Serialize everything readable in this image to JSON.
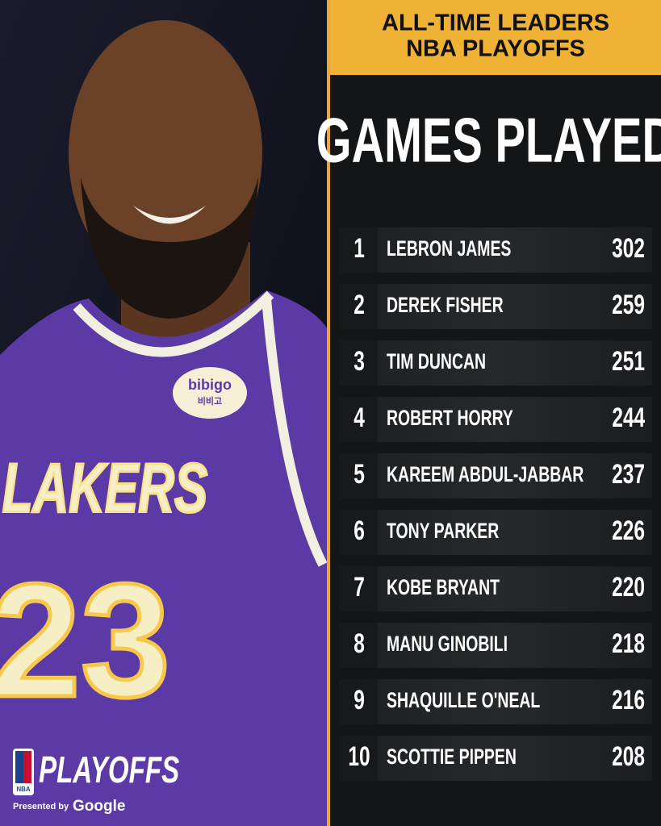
{
  "header": {
    "title_line1": "ALL-TIME LEADERS",
    "title_line2": "NBA PLAYOFFS"
  },
  "stat_title": "GAMES PLAYED",
  "table": {
    "rows": [
      [
        1,
        "LEBRON JAMES",
        302
      ],
      [
        2,
        "DEREK FISHER",
        259
      ],
      [
        3,
        "TIM DUNCAN",
        251
      ],
      [
        4,
        "ROBERT HORRY",
        244
      ],
      [
        5,
        "KAREEM ABDUL-JABBAR",
        237
      ],
      [
        6,
        "TONY PARKER",
        226
      ],
      [
        7,
        "KOBE BRYANT",
        220
      ],
      [
        8,
        "MANU GINOBILI",
        218
      ],
      [
        9,
        "SHAQUILLE O'NEAL",
        216
      ],
      [
        10,
        "SCOTTIE PIPPEN",
        208
      ]
    ]
  },
  "jersey": {
    "sponsor": "bibigo",
    "sponsor_korean": "비비고",
    "team": "LAKERS",
    "number": "23"
  },
  "branding": {
    "logo_text": "NBA",
    "title": "PLAYOFFS",
    "presented_by": "Presented by",
    "sponsor": "Google"
  }
}
